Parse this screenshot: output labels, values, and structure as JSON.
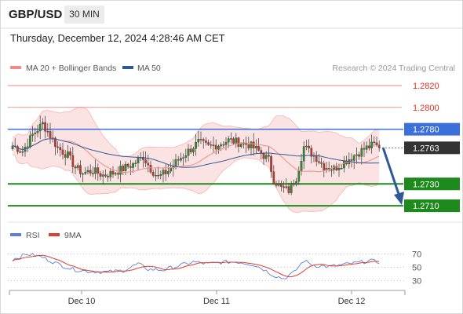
{
  "header": {
    "symbol": "GBP/USD",
    "timeframe": "30 MIN",
    "timestamp": "Thursday, December 12, 2024 4:28:46 AM CET"
  },
  "chart_data": [
    {
      "type": "candlestick",
      "legend": [
        {
          "label": "MA 20 + Bollinger Bands",
          "color": "#f08c84"
        },
        {
          "label": "MA 50",
          "color": "#2e5996"
        }
      ],
      "source": "Research © 2024 Trading Central",
      "ylim": [
        1.2695,
        1.283
      ],
      "levels": [
        {
          "value": 1.282,
          "label": "1.2820",
          "color": "#e8776b",
          "style": "thin"
        },
        {
          "value": 1.28,
          "label": "1.2800",
          "color": "#e8776b",
          "style": "thin"
        },
        {
          "value": 1.278,
          "label": "1.2780",
          "color": "#3b6fd9",
          "style": "blue"
        },
        {
          "value": 1.2763,
          "label": "1.2763",
          "color": "#333333",
          "style": "current"
        },
        {
          "value": 1.273,
          "label": "1.2730",
          "color": "#1e8a1e",
          "style": "green"
        },
        {
          "value": 1.271,
          "label": "1.2710",
          "color": "#1e8a1e",
          "style": "green"
        }
      ],
      "current_price": 1.2763,
      "forecast_arrow": {
        "from": 1.2763,
        "to": 1.271,
        "color": "#2e5996"
      },
      "x_labels": [
        "Dec 10",
        "Dec 11",
        "Dec 12"
      ],
      "anchors": [
        [
          0,
          1.2765
        ],
        [
          4,
          1.276
        ],
        [
          8,
          1.2775
        ],
        [
          12,
          1.2785
        ],
        [
          14,
          1.2778
        ],
        [
          18,
          1.2763
        ],
        [
          22,
          1.2756
        ],
        [
          25,
          1.2745
        ],
        [
          28,
          1.274
        ],
        [
          32,
          1.2742
        ],
        [
          36,
          1.2738
        ],
        [
          40,
          1.274
        ],
        [
          44,
          1.2744
        ],
        [
          48,
          1.2748
        ],
        [
          52,
          1.2755
        ],
        [
          55,
          1.2744
        ],
        [
          58,
          1.2736
        ],
        [
          62,
          1.2742
        ],
        [
          66,
          1.2752
        ],
        [
          70,
          1.276
        ],
        [
          74,
          1.2768
        ],
        [
          78,
          1.2764
        ],
        [
          82,
          1.2766
        ],
        [
          86,
          1.277
        ],
        [
          90,
          1.2768
        ],
        [
          94,
          1.2766
        ],
        [
          98,
          1.276
        ],
        [
          102,
          1.2752
        ],
        [
          104,
          1.2734
        ],
        [
          107,
          1.2726
        ],
        [
          110,
          1.2724
        ],
        [
          113,
          1.2736
        ],
        [
          116,
          1.2764
        ],
        [
          118,
          1.276
        ],
        [
          121,
          1.2754
        ],
        [
          124,
          1.2746
        ],
        [
          128,
          1.2744
        ],
        [
          132,
          1.275
        ],
        [
          136,
          1.2756
        ],
        [
          140,
          1.2762
        ],
        [
          144,
          1.2766
        ],
        [
          146,
          1.2763
        ]
      ]
    },
    {
      "type": "line",
      "legend": [
        {
          "label": "RSI",
          "color": "#5b7fd6"
        },
        {
          "label": "9MA",
          "color": "#e03c31"
        }
      ],
      "ylim": [
        20,
        80
      ],
      "y_ticks": [
        70,
        50,
        30
      ],
      "anchors": [
        [
          0,
          62
        ],
        [
          6,
          70
        ],
        [
          12,
          65
        ],
        [
          18,
          55
        ],
        [
          24,
          47
        ],
        [
          30,
          44
        ],
        [
          38,
          43
        ],
        [
          44,
          45
        ],
        [
          50,
          55
        ],
        [
          54,
          47
        ],
        [
          60,
          46
        ],
        [
          66,
          52
        ],
        [
          72,
          58
        ],
        [
          78,
          55
        ],
        [
          84,
          58
        ],
        [
          90,
          58
        ],
        [
          96,
          54
        ],
        [
          100,
          47
        ],
        [
          104,
          38
        ],
        [
          108,
          33
        ],
        [
          112,
          42
        ],
        [
          116,
          60
        ],
        [
          120,
          53
        ],
        [
          126,
          51
        ],
        [
          132,
          54
        ],
        [
          138,
          57
        ],
        [
          142,
          60
        ],
        [
          146,
          58
        ]
      ]
    }
  ]
}
